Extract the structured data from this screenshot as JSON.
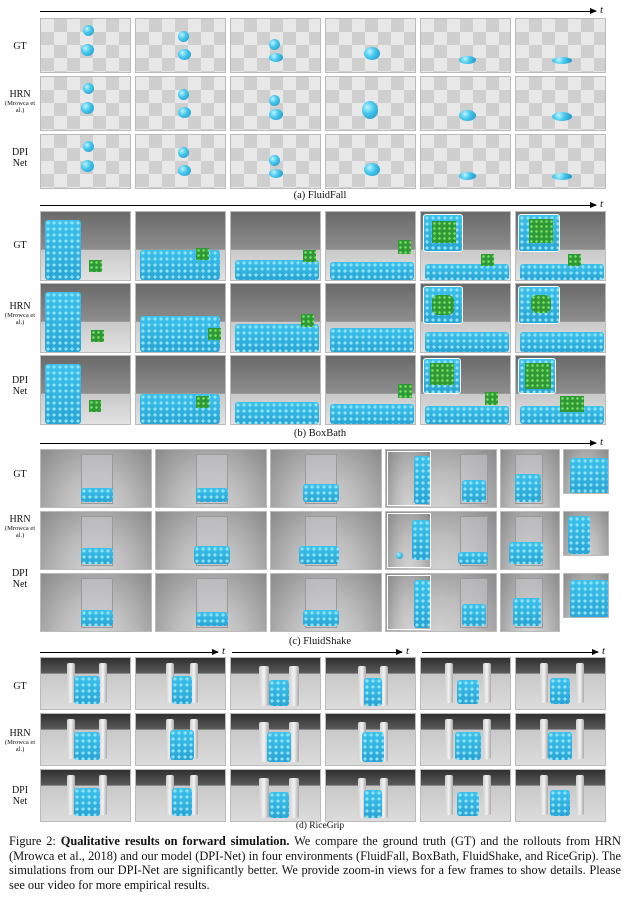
{
  "time_axis_label": "t",
  "row_labels": {
    "gt": "GT",
    "hrn_name": "HRN",
    "hrn_cite": "(Mrowca et al.)",
    "dpi_line1": "DPI",
    "dpi_line2": "Net"
  },
  "panels": {
    "a": "(a) FluidFall",
    "b": "(b) BoxBath",
    "c": "(c) FluidShake",
    "d": "(d) RiceGrip"
  },
  "caption": {
    "prefix": "Figure 2: ",
    "bold": "Qualitative results on forward simulation.",
    "text": " We compare the ground truth (GT) and the rollouts from HRN (Mrowca et al., 2018) and our model (DPI-Net) in four environments (FluidFall, BoxBath, FluidShake, and RiceGrip). The simulations from our DPI-Net are significantly better. We provide zoom-in views for a few frames to show details. Please see our video for more empirical results."
  },
  "colors": {
    "fluid": "#2fb2e3",
    "box": "#2f9a35"
  }
}
